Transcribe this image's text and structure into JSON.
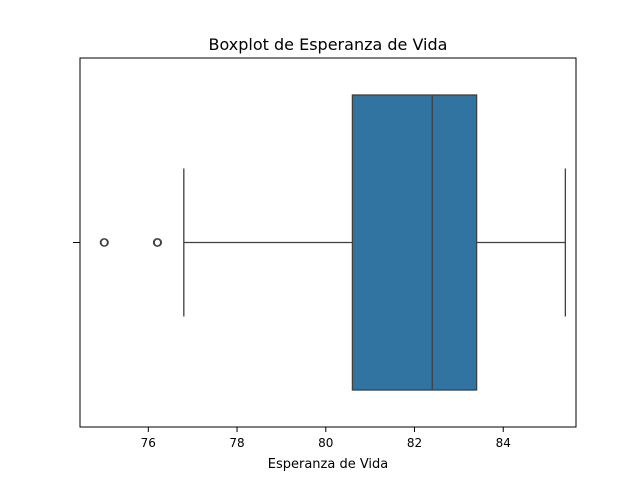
{
  "chart_data": {
    "type": "boxplot",
    "title": "Boxplot de Esperanza de Vida",
    "xlabel": "Esperanza de Vida",
    "ylabel": "",
    "xlim": [
      74.46,
      85.64
    ],
    "x_ticks": [
      76,
      78,
      80,
      82,
      84
    ],
    "x_tick_labels": [
      "76",
      "78",
      "80",
      "82",
      "84"
    ],
    "grid": false,
    "box": {
      "whisker_low": 76.8,
      "q1": 80.6,
      "median": 82.4,
      "q3": 83.4,
      "whisker_high": 85.4,
      "outliers": [
        75.0,
        75.0,
        76.2,
        76.2,
        76.2
      ],
      "color": "#3274a1",
      "line_color": "#3f3f3f"
    }
  }
}
